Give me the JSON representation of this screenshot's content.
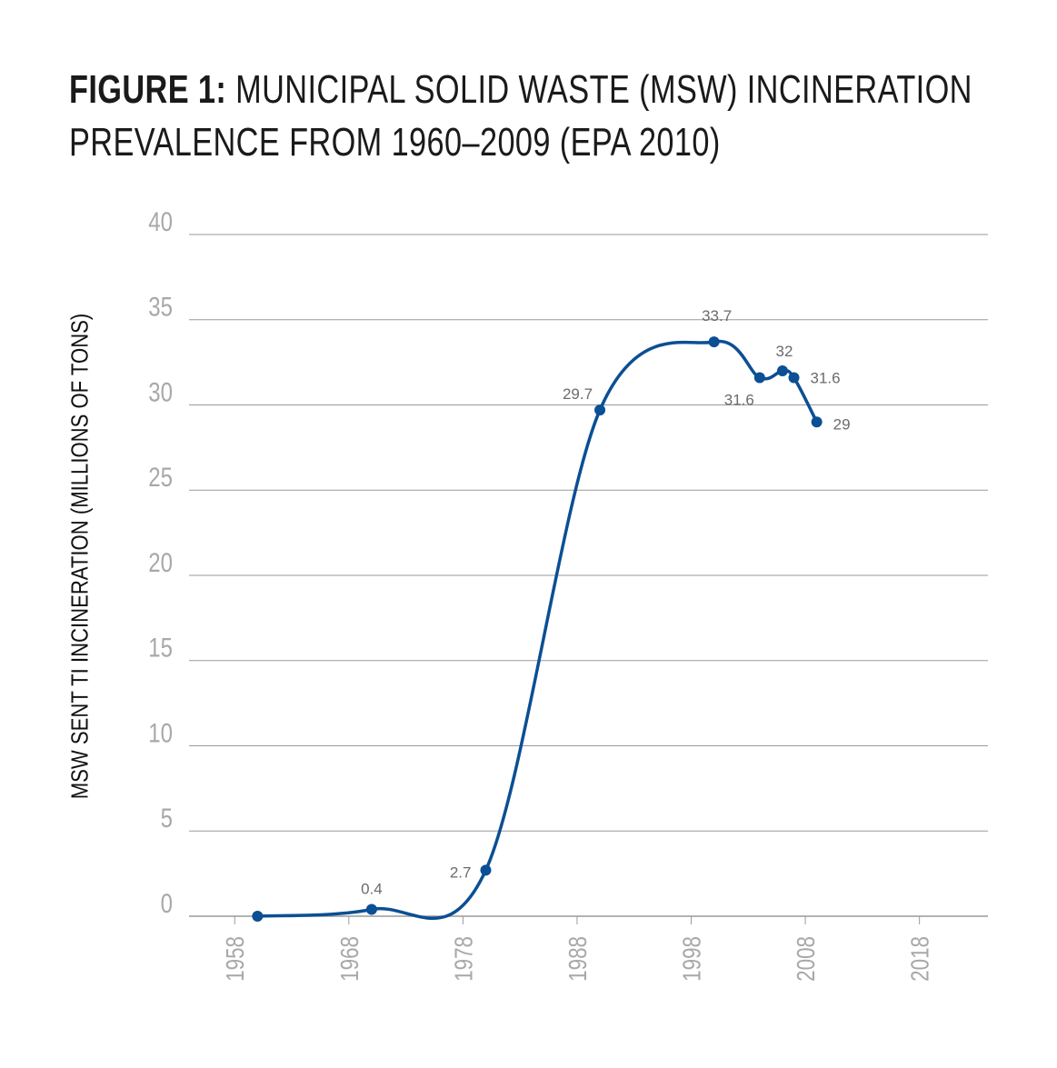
{
  "title": {
    "label": "FIGURE 1:",
    "text_line1": "MUNICIPAL SOLID WASTE (MSW) INCINERATION",
    "text_line2": "PREVALENCE FROM 1960–2009 (EPA 2010)"
  },
  "chart_data": {
    "type": "line",
    "ylabel": "MSW SENT TI INCINERATION (MILLIONS OF TONS)",
    "xlabel": "",
    "xlim": [
      1954,
      2024
    ],
    "ylim": [
      0,
      40
    ],
    "x_ticks": [
      "1958",
      "1968",
      "1978",
      "1988",
      "1998",
      "2008",
      "2018"
    ],
    "y_ticks": [
      "0",
      "5",
      "10",
      "15",
      "20",
      "25",
      "30",
      "35",
      "40"
    ],
    "grid": true,
    "colors": {
      "line": "#0b4f94",
      "grid": "#9a9a9a",
      "tick_text": "#a8a8a8",
      "label_text": "#6b6b6b"
    },
    "series": [
      {
        "x": [
          1960,
          1970,
          1980,
          1990,
          2000,
          2004,
          2006,
          2007,
          2009
        ],
        "y": [
          0,
          0.4,
          2.7,
          29.7,
          33.7,
          31.6,
          32,
          31.6,
          29
        ],
        "labels": [
          "",
          "0.4",
          "2.7",
          "29.7",
          "33.7",
          "31.6",
          "32",
          "31.6",
          "29"
        ]
      }
    ]
  }
}
